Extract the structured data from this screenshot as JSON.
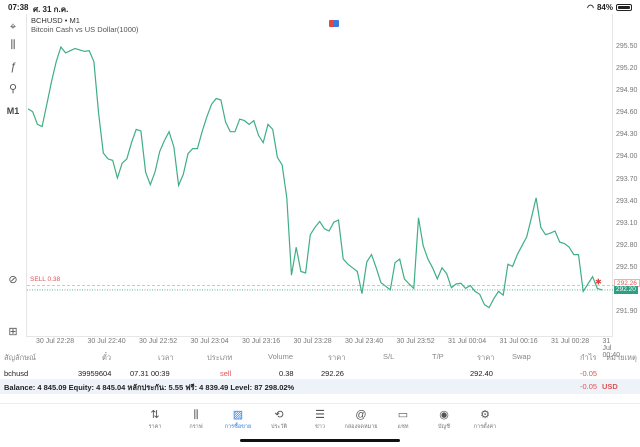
{
  "status_bar": {
    "time": "07:38",
    "date": "ศ. 31 ก.ค.",
    "battery": "84%"
  },
  "chart": {
    "symbol_line": "BCHUSD • M1",
    "description": "Bitcoin Cash vs US Dollar(1000)",
    "sell_label": "SELL 0.38",
    "ask_price_tag": "292.26",
    "bid_price_tag": "292.20",
    "line_color": "#3fae85"
  },
  "left_toolbar": [
    {
      "name": "crosshair-icon",
      "glyph": "⌖"
    },
    {
      "name": "candlestick-icon",
      "glyph": "⫼"
    },
    {
      "name": "function-icon",
      "glyph": "ƒ"
    },
    {
      "name": "objects-icon",
      "glyph": "⚲"
    },
    {
      "name": "timeframe-button",
      "glyph": "M1"
    },
    {
      "name": "chart-search-icon",
      "glyph": "⊘"
    },
    {
      "name": "add-indicator-icon",
      "glyph": "⊞"
    }
  ],
  "chart_data": {
    "type": "line",
    "title": "BCHUSD • M1 — Bitcoin Cash vs US Dollar(1000)",
    "xlabel": "",
    "ylabel": "",
    "x_ticks": [
      "30 Jul 22:28",
      "30 Jul 22:40",
      "30 Jul 22:52",
      "30 Jul 23:04",
      "30 Jul 23:16",
      "30 Jul 23:28",
      "30 Jul 23:40",
      "30 Jul 23:52",
      "31 Jul 00:04",
      "31 Jul 00:16",
      "31 Jul 00:28",
      "31 Jul 00:40"
    ],
    "y_ticks": [
      "295.50",
      "295.20",
      "294.90",
      "294.60",
      "294.30",
      "294.00",
      "293.70",
      "293.40",
      "293.10",
      "292.80",
      "292.50",
      "292.20",
      "291.90"
    ],
    "ylim": [
      291.8,
      295.6
    ],
    "grid": false,
    "series": [
      {
        "name": "BCHUSD bid",
        "values": [
          294.66,
          294.62,
          294.45,
          294.42,
          294.72,
          295.03,
          295.3,
          295.5,
          295.42,
          295.45,
          295.48,
          295.46,
          295.44,
          295.45,
          295.3,
          294.6,
          294.06,
          293.98,
          293.96,
          293.72,
          293.92,
          293.98,
          294.2,
          294.38,
          294.36,
          293.8,
          293.63,
          293.8,
          294.08,
          294.23,
          294.35,
          294.14,
          293.62,
          293.77,
          294.05,
          294.12,
          294.12,
          294.35,
          294.55,
          294.72,
          294.8,
          294.78,
          294.48,
          294.35,
          294.35,
          294.52,
          294.5,
          294.45,
          294.5,
          294.3,
          294.2,
          294.45,
          294.38,
          294.0,
          293.9,
          293.45,
          292.4,
          292.78,
          292.45,
          292.43,
          292.95,
          293.05,
          293.13,
          293.03,
          293.0,
          293.12,
          293.15,
          292.62,
          292.55,
          292.5,
          292.45,
          292.15,
          292.58,
          292.68,
          292.5,
          292.3,
          292.25,
          292.2,
          292.57,
          292.62,
          292.35,
          292.28,
          292.22,
          293.18,
          292.8,
          292.62,
          292.5,
          292.35,
          292.5,
          292.42,
          292.23,
          292.28,
          292.29,
          292.22,
          292.26,
          292.18,
          292.14,
          292.0,
          291.96,
          292.08,
          292.18,
          292.13,
          292.55,
          292.52,
          292.68,
          292.8,
          292.92,
          293.18,
          293.45,
          293.05,
          292.95,
          292.97,
          293.0,
          292.85,
          292.83,
          292.78,
          292.68,
          292.68,
          292.18,
          292.28,
          292.38,
          292.22,
          292.2
        ]
      }
    ],
    "annotations": [
      "SELL 0.38 at 292.26",
      "Ask 292.26",
      "Bid 292.20"
    ]
  },
  "trades": {
    "headers": [
      "สัญลักษณ์",
      "ตั๋ว",
      "เวลา",
      "ประเภท",
      "Volume",
      "ราคา",
      "S/L",
      "T/P",
      "ราคา",
      "Swap",
      "กำไร",
      "หมายเหตุ"
    ],
    "rows": [
      {
        "symbol": "bchusd",
        "ticket": "39959604",
        "time": "07.31 00:39",
        "type": "sell",
        "volume": "0.38",
        "open_price": "292.26",
        "sl": "",
        "tp": "",
        "price": "292.40",
        "swap": "",
        "profit": "-0.05",
        "comment": ""
      }
    ],
    "balance_text": "Balance: 4 845.09 Equity: 4 845.04 หลักประกัน: 5.55 ฟรี: 4 839.49 Level: 87 298.02%",
    "total_profit": "-0.05",
    "currency": "USD"
  },
  "tabbar": [
    {
      "label": "ราคา",
      "icon": "⇅",
      "name": "quotes"
    },
    {
      "label": "กราฟ",
      "icon": "⫼",
      "name": "chart"
    },
    {
      "label": "การซื้อขาย",
      "icon": "📈",
      "name": "trade",
      "active": true
    },
    {
      "label": "ประวัติ",
      "icon": "⟲",
      "name": "history"
    },
    {
      "label": "ข่าว",
      "icon": "☰",
      "name": "news"
    },
    {
      "label": "กล่องจดหมาย",
      "icon": "@",
      "name": "mailbox"
    },
    {
      "label": "แชท",
      "icon": "▭",
      "name": "chat"
    },
    {
      "label": "บัญชี",
      "icon": "◉",
      "name": "accounts"
    },
    {
      "label": "การตั้งค่า",
      "icon": "⚙",
      "name": "settings"
    }
  ]
}
